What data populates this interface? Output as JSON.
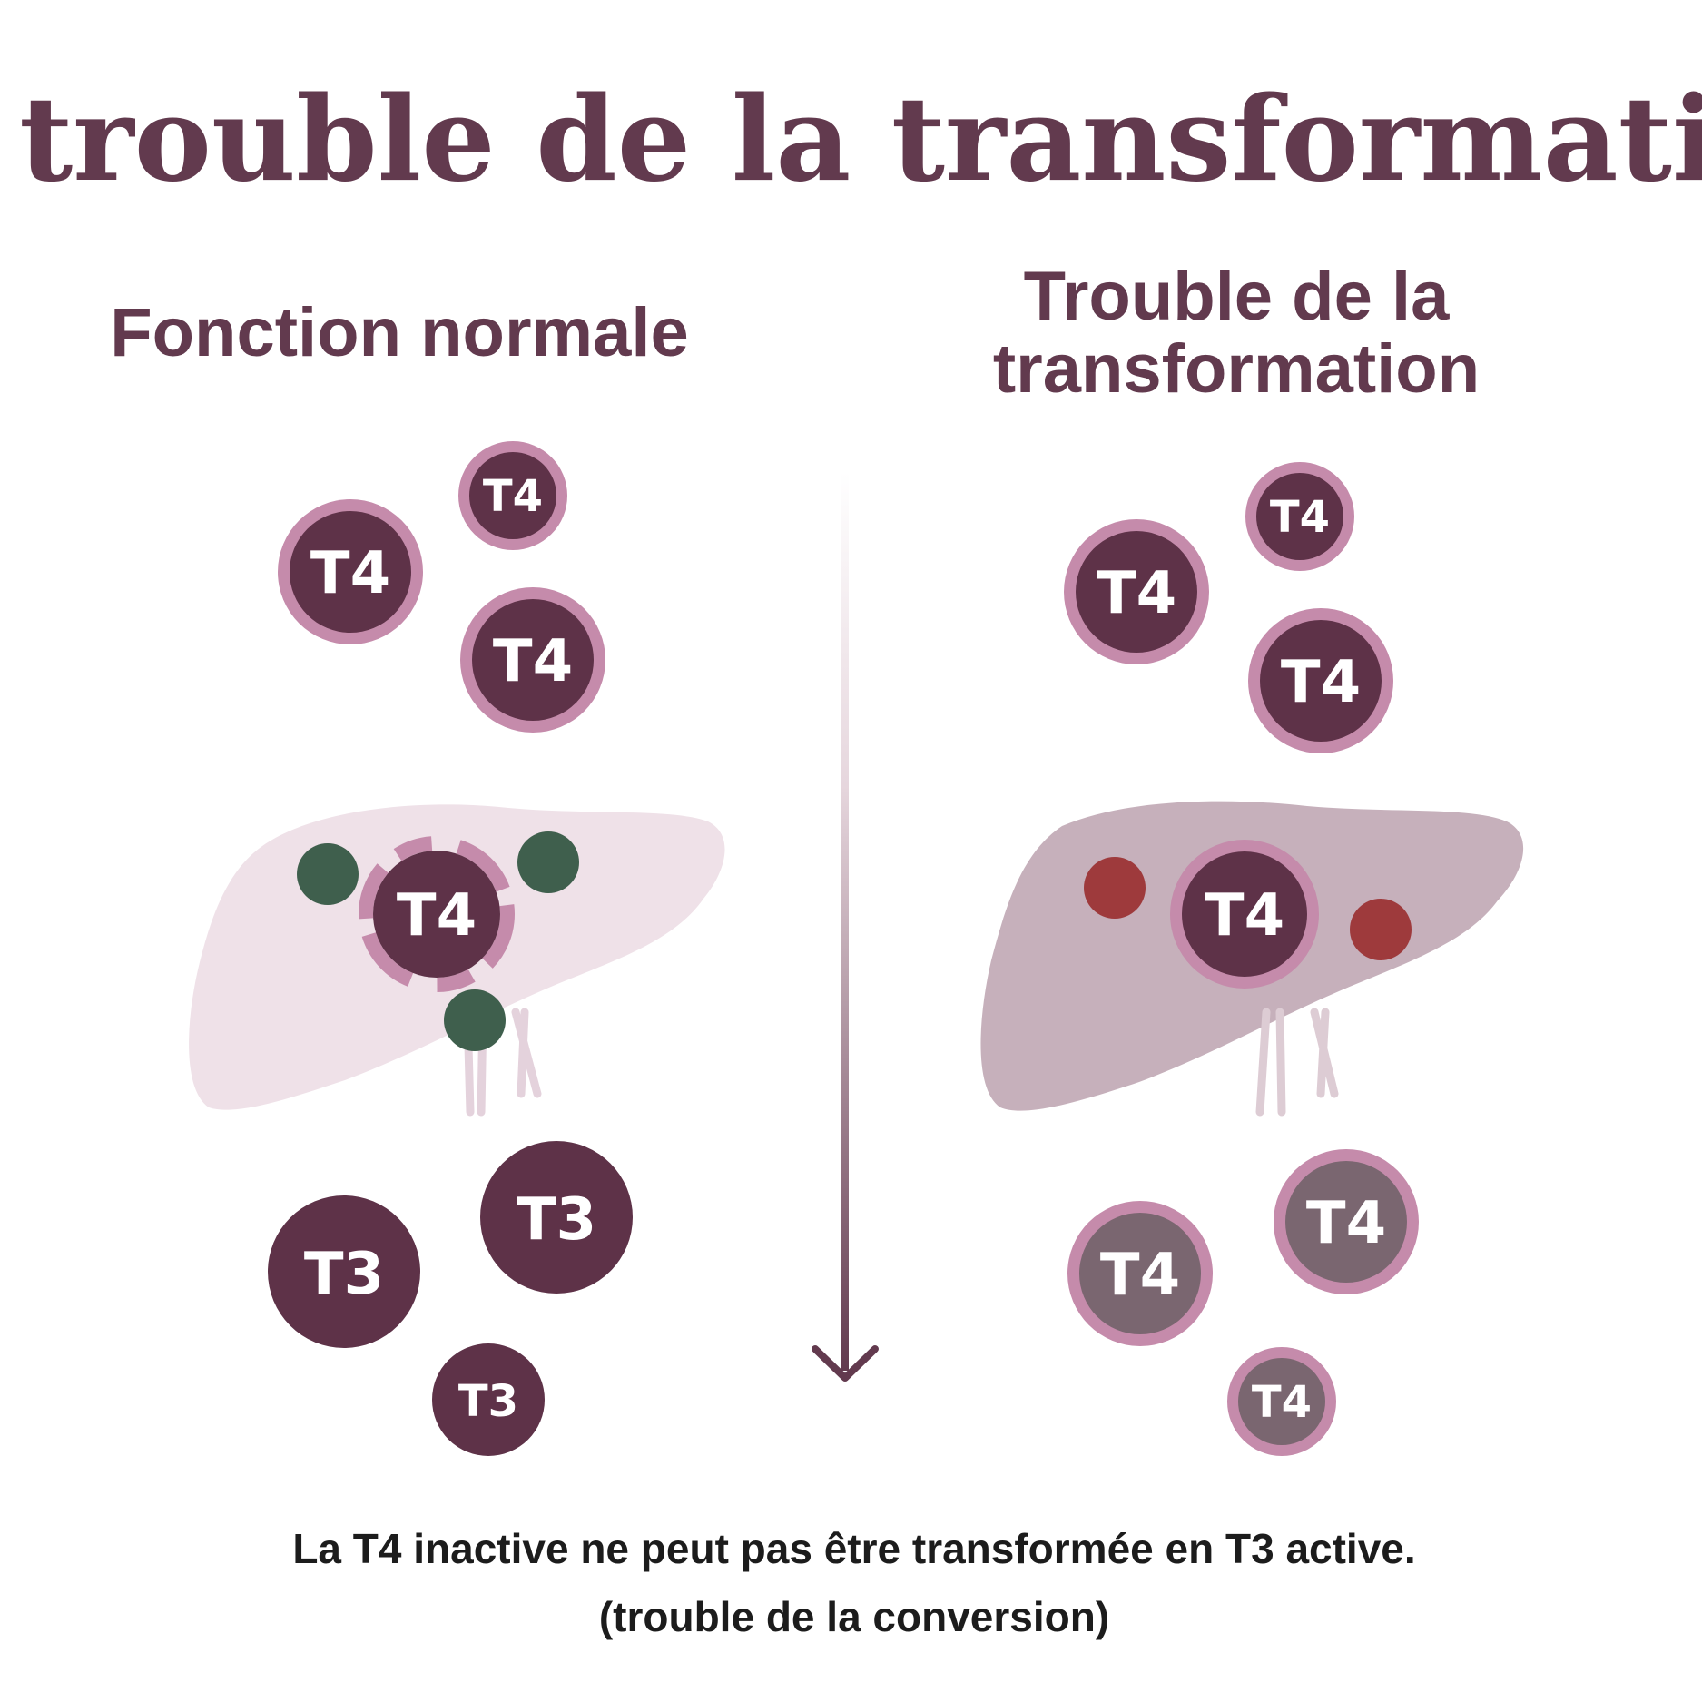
{
  "title": "Le trouble de la transformation",
  "left_panel": {
    "heading": "Fonction normale",
    "top_hormones": [
      "T4",
      "T4",
      "T4"
    ],
    "liver_hormone": "T4",
    "bottom_hormones": [
      "T3",
      "T3",
      "T3"
    ]
  },
  "right_panel": {
    "heading_line1": "Trouble de la",
    "heading_line2": "transformation",
    "top_hormones": [
      "T4",
      "T4",
      "T4"
    ],
    "liver_hormone": "T4",
    "bottom_hormones": [
      "T4",
      "T4",
      "T4"
    ]
  },
  "caption": {
    "line1": "La T4 inactive ne peut pas être transformée en T3 active.",
    "line2": "(trouble de la conversion)"
  },
  "colors": {
    "title": "#623a4e",
    "hormone_dark": "#5e3248",
    "hormone_ring": "#c58bab",
    "hormone_grey": "#7a6670",
    "liver_normal": "#efe1e8",
    "liver_impaired": "#c6b0bb",
    "enzyme_active": "#3f5f4d",
    "enzyme_inactive": "#9e3a3c"
  },
  "icons": [
    "liver-icon",
    "arrow-down-icon"
  ]
}
